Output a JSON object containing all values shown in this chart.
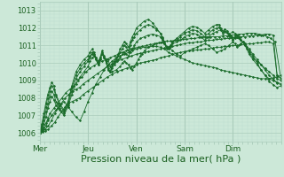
{
  "background_color": "#cce8d8",
  "plot_bg_color": "#cce8d8",
  "grid_major_color": "#aaccbb",
  "grid_minor_color": "#bbddd0",
  "line_color": "#1a6b2a",
  "xlabel": "Pression niveau de la mer( hPa )",
  "xlabel_fontsize": 8,
  "yticks": [
    1006,
    1007,
    1008,
    1009,
    1010,
    1011,
    1012,
    1013
  ],
  "xtick_labels": [
    "Mer",
    "Jeu",
    "Ven",
    "Sam",
    "Dim"
  ],
  "xtick_positions": [
    0.0,
    0.2,
    0.4,
    0.6,
    0.8
  ],
  "ylim": [
    1005.5,
    1013.5
  ],
  "xlim": [
    0.0,
    1.0
  ],
  "series": [
    {
      "style": "dotted_marker",
      "x": [
        0.0,
        0.008,
        0.017,
        0.025,
        0.033,
        0.05,
        0.067,
        0.083,
        0.1,
        0.117,
        0.133,
        0.15,
        0.167,
        0.183,
        0.2,
        0.217,
        0.233,
        0.25,
        0.267,
        0.283,
        0.3,
        0.317,
        0.333,
        0.35,
        0.367,
        0.383,
        0.4,
        0.417,
        0.433,
        0.45,
        0.467,
        0.483,
        0.5,
        0.517,
        0.533,
        0.55,
        0.567,
        0.583,
        0.6,
        0.617,
        0.633,
        0.65,
        0.667,
        0.683,
        0.7,
        0.717,
        0.733,
        0.75,
        0.767,
        0.783,
        0.8,
        0.817,
        0.833,
        0.85,
        0.867,
        0.883,
        0.9,
        0.917,
        0.933,
        0.95,
        0.967,
        0.983,
        1.0
      ],
      "y": [
        1006.0,
        1006.1,
        1006.2,
        1006.4,
        1006.7,
        1007.0,
        1007.3,
        1007.6,
        1007.8,
        1007.5,
        1007.2,
        1006.9,
        1006.7,
        1007.2,
        1007.8,
        1008.3,
        1008.8,
        1009.2,
        1009.6,
        1009.9,
        1010.1,
        1010.3,
        1010.4,
        1010.5,
        1010.6,
        1010.7,
        1010.8,
        1010.85,
        1010.9,
        1010.9,
        1010.95,
        1010.95,
        1010.9,
        1010.8,
        1010.6,
        1010.5,
        1010.4,
        1010.3,
        1010.2,
        1010.1,
        1010.0,
        1009.95,
        1009.9,
        1009.85,
        1009.8,
        1009.75,
        1009.7,
        1009.6,
        1009.55,
        1009.5,
        1009.45,
        1009.4,
        1009.35,
        1009.3,
        1009.25,
        1009.2,
        1009.15,
        1009.1,
        1009.1,
        1009.1,
        1009.15,
        1009.2,
        1009.3
      ]
    },
    {
      "style": "solid_marker",
      "x": [
        0.0,
        0.01,
        0.022,
        0.035,
        0.048,
        0.062,
        0.075,
        0.09,
        0.105,
        0.12,
        0.135,
        0.15,
        0.165,
        0.18,
        0.2,
        0.22,
        0.24,
        0.26,
        0.28,
        0.3,
        0.32,
        0.34,
        0.36,
        0.38,
        0.4,
        0.417,
        0.433,
        0.45,
        0.467,
        0.483,
        0.5,
        0.517,
        0.533,
        0.55,
        0.567,
        0.583,
        0.6,
        0.617,
        0.633,
        0.65,
        0.667,
        0.683,
        0.7,
        0.717,
        0.733,
        0.75,
        0.767,
        0.783,
        0.8,
        0.817,
        0.833,
        0.85,
        0.867,
        0.883,
        0.9,
        0.917,
        0.933,
        0.95,
        0.967,
        0.983,
        1.0
      ],
      "y": [
        1006.0,
        1006.05,
        1006.1,
        1006.2,
        1006.4,
        1006.6,
        1006.9,
        1007.2,
        1007.5,
        1007.7,
        1007.8,
        1007.9,
        1008.0,
        1008.2,
        1008.4,
        1008.6,
        1008.8,
        1009.0,
        1009.2,
        1009.35,
        1009.5,
        1009.6,
        1009.7,
        1009.8,
        1009.9,
        1010.0,
        1010.05,
        1010.1,
        1010.15,
        1010.2,
        1010.3,
        1010.35,
        1010.4,
        1010.5,
        1010.55,
        1010.6,
        1010.65,
        1010.7,
        1010.7,
        1010.75,
        1010.75,
        1010.8,
        1010.8,
        1010.85,
        1010.9,
        1010.9,
        1010.95,
        1010.95,
        1011.0,
        1011.0,
        1011.05,
        1011.05,
        1011.1,
        1011.1,
        1011.15,
        1011.15,
        1011.2,
        1011.2,
        1011.1,
        1009.3,
        1009.1
      ]
    },
    {
      "style": "solid_marker",
      "x": [
        0.0,
        0.01,
        0.022,
        0.035,
        0.048,
        0.062,
        0.075,
        0.09,
        0.105,
        0.12,
        0.135,
        0.15,
        0.165,
        0.18,
        0.2,
        0.22,
        0.24,
        0.26,
        0.28,
        0.3,
        0.32,
        0.34,
        0.36,
        0.38,
        0.4,
        0.417,
        0.433,
        0.45,
        0.467,
        0.483,
        0.5,
        0.517,
        0.533,
        0.55,
        0.567,
        0.583,
        0.6,
        0.617,
        0.633,
        0.65,
        0.667,
        0.683,
        0.7,
        0.717,
        0.733,
        0.75,
        0.767,
        0.783,
        0.8,
        0.817,
        0.833,
        0.85,
        0.867,
        0.883,
        0.9,
        0.917,
        0.933,
        0.95,
        0.967,
        0.983,
        1.0
      ],
      "y": [
        1006.0,
        1006.1,
        1006.2,
        1006.4,
        1006.7,
        1007.1,
        1007.4,
        1007.7,
        1008.0,
        1008.2,
        1008.4,
        1008.5,
        1008.6,
        1008.8,
        1009.0,
        1009.2,
        1009.4,
        1009.6,
        1009.8,
        1009.95,
        1010.1,
        1010.2,
        1010.3,
        1010.4,
        1010.5,
        1010.55,
        1010.6,
        1010.65,
        1010.7,
        1010.75,
        1010.8,
        1010.85,
        1010.9,
        1010.95,
        1011.0,
        1011.05,
        1011.1,
        1011.15,
        1011.15,
        1011.2,
        1011.2,
        1011.25,
        1011.3,
        1011.3,
        1011.35,
        1011.35,
        1011.4,
        1011.4,
        1011.45,
        1011.45,
        1011.5,
        1011.5,
        1011.55,
        1011.55,
        1011.6,
        1011.6,
        1011.65,
        1011.65,
        1011.6,
        1009.3,
        1009.1
      ]
    },
    {
      "style": "solid_marker",
      "x": [
        0.0,
        0.008,
        0.016,
        0.025,
        0.033,
        0.042,
        0.058,
        0.075,
        0.092,
        0.108,
        0.125,
        0.142,
        0.158,
        0.175,
        0.192,
        0.208,
        0.225,
        0.242,
        0.258,
        0.275,
        0.292,
        0.308,
        0.325,
        0.342,
        0.358,
        0.375,
        0.392,
        0.408,
        0.425,
        0.442,
        0.458,
        0.475,
        0.492,
        0.508,
        0.525,
        0.542,
        0.558,
        0.575,
        0.592,
        0.608,
        0.625,
        0.642,
        0.658,
        0.675,
        0.692,
        0.708,
        0.725,
        0.742,
        0.758,
        0.775,
        0.792,
        0.808,
        0.825,
        0.842,
        0.858,
        0.875,
        0.892,
        0.908,
        0.925,
        0.942,
        0.958,
        0.975,
        1.0
      ],
      "y": [
        1006.0,
        1006.15,
        1006.3,
        1006.55,
        1006.8,
        1007.1,
        1007.4,
        1007.7,
        1008.0,
        1008.3,
        1008.5,
        1008.7,
        1009.0,
        1009.2,
        1009.5,
        1009.7,
        1009.85,
        1010.0,
        1010.1,
        1010.2,
        1010.3,
        1010.4,
        1010.5,
        1010.6,
        1010.7,
        1010.8,
        1010.85,
        1010.9,
        1010.95,
        1011.0,
        1011.05,
        1011.1,
        1011.15,
        1011.2,
        1011.25,
        1011.25,
        1011.3,
        1011.3,
        1011.35,
        1011.35,
        1011.4,
        1011.4,
        1011.45,
        1011.5,
        1011.5,
        1011.5,
        1011.5,
        1011.5,
        1011.55,
        1011.55,
        1011.6,
        1011.6,
        1011.65,
        1011.65,
        1011.7,
        1011.7,
        1011.7,
        1011.65,
        1011.6,
        1011.5,
        1011.4,
        1011.2,
        1009.0
      ]
    },
    {
      "style": "jagged_marker",
      "x": [
        0.0,
        0.008,
        0.017,
        0.025,
        0.033,
        0.042,
        0.05,
        0.058,
        0.067,
        0.083,
        0.1,
        0.117,
        0.133,
        0.15,
        0.167,
        0.183,
        0.2,
        0.208,
        0.217,
        0.225,
        0.233,
        0.242,
        0.25,
        0.258,
        0.267,
        0.283,
        0.292,
        0.3,
        0.317,
        0.333,
        0.342,
        0.35,
        0.358,
        0.367,
        0.375,
        0.383,
        0.392,
        0.4,
        0.408,
        0.417,
        0.425,
        0.433,
        0.45,
        0.467,
        0.483,
        0.5,
        0.517,
        0.533,
        0.55,
        0.567,
        0.583,
        0.6,
        0.617,
        0.633,
        0.65,
        0.667,
        0.683,
        0.7,
        0.717,
        0.733,
        0.75,
        0.767,
        0.783,
        0.8,
        0.808,
        0.817,
        0.825,
        0.833,
        0.842,
        0.85,
        0.858,
        0.867,
        0.883,
        0.9,
        0.917,
        0.933,
        0.95,
        0.967,
        0.983,
        1.0
      ],
      "y": [
        1006.0,
        1006.2,
        1006.5,
        1006.9,
        1007.4,
        1007.8,
        1008.1,
        1007.9,
        1007.6,
        1007.3,
        1007.0,
        1007.5,
        1008.2,
        1008.8,
        1009.2,
        1009.5,
        1009.8,
        1010.1,
        1010.3,
        1010.4,
        1010.3,
        1010.1,
        1010.3,
        1010.5,
        1010.3,
        1010.2,
        1009.8,
        1009.5,
        1009.6,
        1009.8,
        1010.0,
        1010.1,
        1010.0,
        1009.9,
        1009.7,
        1009.6,
        1009.8,
        1010.0,
        1010.2,
        1010.4,
        1010.5,
        1010.7,
        1010.9,
        1011.0,
        1011.1,
        1011.15,
        1011.1,
        1010.9,
        1010.7,
        1010.5,
        1010.4,
        1010.6,
        1010.7,
        1010.8,
        1010.9,
        1011.0,
        1011.1,
        1011.0,
        1010.8,
        1010.6,
        1010.7,
        1010.8,
        1011.0,
        1011.2,
        1011.1,
        1010.9,
        1011.0,
        1011.1,
        1011.2,
        1011.1,
        1010.9,
        1010.6,
        1010.3,
        1010.1,
        1009.9,
        1009.7,
        1009.5,
        1009.3,
        1009.1,
        1009.0
      ]
    },
    {
      "style": "jagged_marker",
      "x": [
        0.0,
        0.008,
        0.017,
        0.025,
        0.033,
        0.042,
        0.05,
        0.058,
        0.067,
        0.083,
        0.1,
        0.117,
        0.133,
        0.15,
        0.167,
        0.183,
        0.2,
        0.208,
        0.217,
        0.225,
        0.233,
        0.242,
        0.25,
        0.258,
        0.267,
        0.275,
        0.283,
        0.292,
        0.3,
        0.308,
        0.317,
        0.325,
        0.333,
        0.342,
        0.35,
        0.358,
        0.367,
        0.375,
        0.383,
        0.392,
        0.4,
        0.417,
        0.433,
        0.45,
        0.467,
        0.483,
        0.5,
        0.508,
        0.517,
        0.525,
        0.533,
        0.542,
        0.55,
        0.567,
        0.583,
        0.6,
        0.617,
        0.633,
        0.65,
        0.667,
        0.683,
        0.7,
        0.717,
        0.733,
        0.75,
        0.767,
        0.783,
        0.8,
        0.808,
        0.817,
        0.825,
        0.833,
        0.842,
        0.85,
        0.858,
        0.867,
        0.883,
        0.9,
        0.917,
        0.933,
        0.95,
        0.967,
        0.983,
        1.0
      ],
      "y": [
        1006.0,
        1006.3,
        1006.7,
        1007.2,
        1007.7,
        1008.1,
        1008.4,
        1008.2,
        1007.8,
        1007.4,
        1007.1,
        1007.6,
        1008.4,
        1009.1,
        1009.5,
        1009.8,
        1010.1,
        1010.3,
        1010.5,
        1010.4,
        1010.2,
        1009.9,
        1010.2,
        1010.5,
        1010.3,
        1010.1,
        1009.7,
        1009.5,
        1009.7,
        1009.9,
        1010.1,
        1010.2,
        1010.3,
        1010.5,
        1010.6,
        1010.5,
        1010.4,
        1010.6,
        1010.8,
        1011.0,
        1011.2,
        1011.4,
        1011.5,
        1011.6,
        1011.65,
        1011.6,
        1011.5,
        1011.3,
        1011.1,
        1010.9,
        1010.8,
        1010.9,
        1011.1,
        1011.2,
        1011.3,
        1011.5,
        1011.6,
        1011.7,
        1011.65,
        1011.5,
        1011.3,
        1011.5,
        1011.7,
        1011.8,
        1011.9,
        1011.8,
        1011.6,
        1011.8,
        1011.7,
        1011.6,
        1011.5,
        1011.3,
        1011.2,
        1011.0,
        1010.8,
        1010.5,
        1010.2,
        1009.9,
        1009.6,
        1009.3,
        1009.1,
        1009.0,
        1008.9,
        1008.8
      ]
    },
    {
      "style": "jagged_top",
      "x": [
        0.0,
        0.008,
        0.017,
        0.025,
        0.033,
        0.042,
        0.05,
        0.058,
        0.067,
        0.083,
        0.1,
        0.117,
        0.133,
        0.15,
        0.167,
        0.183,
        0.2,
        0.208,
        0.217,
        0.225,
        0.233,
        0.242,
        0.25,
        0.258,
        0.267,
        0.275,
        0.283,
        0.292,
        0.3,
        0.308,
        0.317,
        0.325,
        0.333,
        0.342,
        0.35,
        0.358,
        0.367,
        0.375,
        0.383,
        0.392,
        0.4,
        0.417,
        0.433,
        0.45,
        0.467,
        0.483,
        0.5,
        0.508,
        0.517,
        0.525,
        0.533,
        0.542,
        0.55,
        0.567,
        0.583,
        0.6,
        0.617,
        0.633,
        0.65,
        0.667,
        0.683,
        0.7,
        0.717,
        0.733,
        0.742,
        0.75,
        0.758,
        0.767,
        0.775,
        0.783,
        0.792,
        0.8,
        0.808,
        0.817,
        0.825,
        0.833,
        0.85,
        0.867,
        0.883,
        0.9,
        0.917,
        0.933,
        0.95,
        0.967,
        0.983,
        1.0
      ],
      "y": [
        1006.0,
        1006.4,
        1006.9,
        1007.5,
        1008.0,
        1008.4,
        1008.7,
        1008.5,
        1008.1,
        1007.6,
        1007.2,
        1007.7,
        1008.6,
        1009.3,
        1009.7,
        1010.0,
        1010.2,
        1010.4,
        1010.6,
        1010.5,
        1010.2,
        1009.9,
        1010.2,
        1010.6,
        1010.3,
        1010.0,
        1009.6,
        1009.5,
        1009.8,
        1010.0,
        1010.2,
        1010.4,
        1010.6,
        1010.8,
        1011.0,
        1010.9,
        1010.7,
        1011.0,
        1011.3,
        1011.5,
        1011.7,
        1011.9,
        1012.1,
        1012.2,
        1012.1,
        1011.9,
        1011.7,
        1011.5,
        1011.2,
        1010.9,
        1010.8,
        1011.0,
        1011.2,
        1011.3,
        1011.5,
        1011.7,
        1011.8,
        1011.9,
        1011.85,
        1011.7,
        1011.5,
        1011.7,
        1011.9,
        1012.0,
        1012.05,
        1011.9,
        1011.7,
        1011.85,
        1011.75,
        1011.6,
        1011.5,
        1011.3,
        1011.4,
        1011.5,
        1011.4,
        1011.3,
        1011.1,
        1010.8,
        1010.5,
        1010.2,
        1009.9,
        1009.6,
        1009.3,
        1009.05,
        1008.85,
        1008.75
      ]
    },
    {
      "style": "peak_top",
      "x": [
        0.0,
        0.008,
        0.017,
        0.025,
        0.033,
        0.042,
        0.05,
        0.058,
        0.067,
        0.083,
        0.1,
        0.117,
        0.133,
        0.15,
        0.167,
        0.183,
        0.2,
        0.208,
        0.217,
        0.225,
        0.233,
        0.242,
        0.25,
        0.258,
        0.267,
        0.275,
        0.283,
        0.292,
        0.3,
        0.308,
        0.317,
        0.325,
        0.333,
        0.342,
        0.35,
        0.358,
        0.367,
        0.375,
        0.383,
        0.392,
        0.4,
        0.417,
        0.433,
        0.45,
        0.467,
        0.483,
        0.5,
        0.508,
        0.517,
        0.525,
        0.533,
        0.542,
        0.55,
        0.567,
        0.583,
        0.6,
        0.617,
        0.633,
        0.65,
        0.667,
        0.683,
        0.7,
        0.717,
        0.733,
        0.742,
        0.75,
        0.758,
        0.767,
        0.775,
        0.783,
        0.792,
        0.8,
        0.808,
        0.817,
        0.825,
        0.833,
        0.85,
        0.867,
        0.883,
        0.9,
        0.917,
        0.933,
        0.95,
        0.967,
        0.983,
        1.0
      ],
      "y": [
        1006.0,
        1006.5,
        1007.1,
        1007.7,
        1008.2,
        1008.6,
        1008.9,
        1008.7,
        1008.2,
        1007.7,
        1007.3,
        1007.8,
        1008.7,
        1009.5,
        1009.9,
        1010.2,
        1010.4,
        1010.6,
        1010.8,
        1010.6,
        1010.3,
        1010.0,
        1010.3,
        1010.7,
        1010.4,
        1010.1,
        1009.6,
        1009.5,
        1009.9,
        1010.1,
        1010.3,
        1010.5,
        1010.8,
        1011.0,
        1011.2,
        1011.1,
        1010.9,
        1011.2,
        1011.5,
        1011.7,
        1012.0,
        1012.2,
        1012.4,
        1012.5,
        1012.3,
        1012.0,
        1011.7,
        1011.4,
        1011.1,
        1010.8,
        1010.8,
        1011.0,
        1011.2,
        1011.4,
        1011.6,
        1011.8,
        1012.0,
        1012.1,
        1012.05,
        1011.9,
        1011.7,
        1011.9,
        1012.1,
        1012.2,
        1012.2,
        1012.0,
        1011.8,
        1011.95,
        1011.85,
        1011.7,
        1011.55,
        1011.3,
        1011.5,
        1011.6,
        1011.5,
        1011.3,
        1011.0,
        1010.7,
        1010.4,
        1010.0,
        1009.6,
        1009.3,
        1008.95,
        1008.75,
        1008.6,
        1008.7
      ]
    }
  ]
}
